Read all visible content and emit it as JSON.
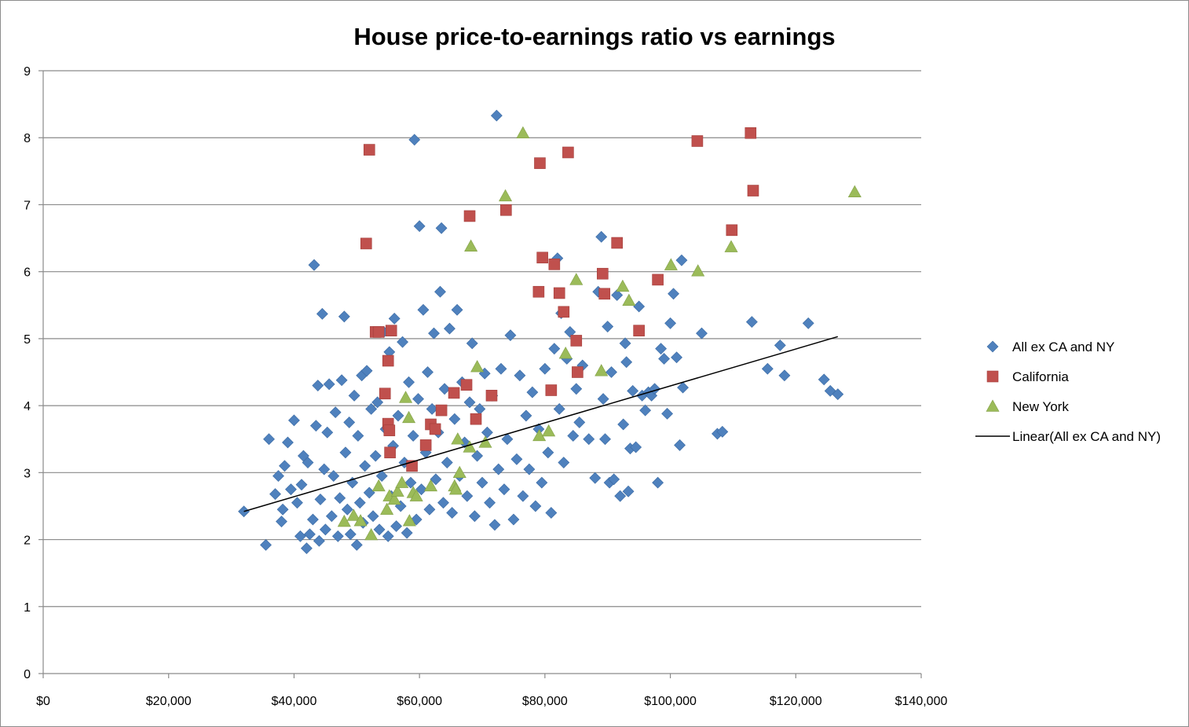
{
  "chart_data": {
    "type": "scatter",
    "title": "House price-to-earnings ratio vs earnings",
    "xlabel": "",
    "ylabel": "",
    "xlim": [
      0,
      140000
    ],
    "ylim": [
      0,
      9
    ],
    "x_ticks": [
      0,
      20000,
      40000,
      60000,
      80000,
      100000,
      120000,
      140000
    ],
    "x_tick_labels": [
      "$0",
      "$20,000",
      "$40,000",
      "$60,000",
      "$80,000",
      "$100,000",
      "$120,000",
      "$140,000"
    ],
    "y_ticks": [
      0,
      1,
      2,
      3,
      4,
      5,
      6,
      7,
      8,
      9
    ],
    "y_tick_labels": [
      "0",
      "1",
      "2",
      "3",
      "4",
      "5",
      "6",
      "7",
      "8",
      "9"
    ],
    "grid": "horizontal",
    "legend_position": "right",
    "series": [
      {
        "name": "All ex CA and NY",
        "marker": "diamond",
        "color": "#4f81bd",
        "points": [
          [
            32000,
            2.42
          ],
          [
            35500,
            1.92
          ],
          [
            36000,
            3.5
          ],
          [
            37000,
            2.68
          ],
          [
            37500,
            2.95
          ],
          [
            38000,
            2.27
          ],
          [
            38200,
            2.45
          ],
          [
            38500,
            3.1
          ],
          [
            39000,
            3.45
          ],
          [
            39500,
            2.75
          ],
          [
            40000,
            3.78
          ],
          [
            40500,
            2.55
          ],
          [
            41000,
            2.05
          ],
          [
            41200,
            2.82
          ],
          [
            41500,
            3.25
          ],
          [
            42000,
            1.87
          ],
          [
            42200,
            3.15
          ],
          [
            42500,
            2.08
          ],
          [
            43000,
            2.3
          ],
          [
            43200,
            6.1
          ],
          [
            43500,
            3.7
          ],
          [
            43800,
            4.3
          ],
          [
            44000,
            1.98
          ],
          [
            44200,
            2.6
          ],
          [
            44500,
            5.37
          ],
          [
            44800,
            3.05
          ],
          [
            45000,
            2.15
          ],
          [
            45300,
            3.6
          ],
          [
            45600,
            4.32
          ],
          [
            46000,
            2.35
          ],
          [
            46300,
            2.95
          ],
          [
            46600,
            3.9
          ],
          [
            47000,
            2.05
          ],
          [
            47300,
            2.62
          ],
          [
            47600,
            4.38
          ],
          [
            48000,
            5.33
          ],
          [
            48200,
            3.3
          ],
          [
            48500,
            2.45
          ],
          [
            48800,
            3.75
          ],
          [
            49000,
            2.08
          ],
          [
            49300,
            2.85
          ],
          [
            49600,
            4.15
          ],
          [
            50000,
            1.92
          ],
          [
            50200,
            3.55
          ],
          [
            50500,
            2.55
          ],
          [
            50800,
            4.45
          ],
          [
            51000,
            2.25
          ],
          [
            51300,
            3.1
          ],
          [
            51600,
            4.52
          ],
          [
            52000,
            2.7
          ],
          [
            52300,
            3.95
          ],
          [
            52600,
            2.35
          ],
          [
            53000,
            3.25
          ],
          [
            53300,
            4.05
          ],
          [
            53600,
            2.15
          ],
          [
            54000,
            2.95
          ],
          [
            54300,
            5.1
          ],
          [
            54600,
            3.65
          ],
          [
            55000,
            2.05
          ],
          [
            55200,
            4.8
          ],
          [
            55500,
            2.65
          ],
          [
            55800,
            3.4
          ],
          [
            56000,
            5.3
          ],
          [
            56300,
            2.2
          ],
          [
            56600,
            3.85
          ],
          [
            57000,
            2.5
          ],
          [
            57300,
            4.95
          ],
          [
            57600,
            3.15
          ],
          [
            58000,
            2.1
          ],
          [
            58300,
            4.35
          ],
          [
            58600,
            2.85
          ],
          [
            59000,
            3.55
          ],
          [
            59200,
            7.97
          ],
          [
            59500,
            2.3
          ],
          [
            59800,
            4.1
          ],
          [
            60000,
            6.68
          ],
          [
            60300,
            2.75
          ],
          [
            60600,
            5.43
          ],
          [
            61000,
            3.3
          ],
          [
            61300,
            4.5
          ],
          [
            61600,
            2.45
          ],
          [
            62000,
            3.95
          ],
          [
            62300,
            5.08
          ],
          [
            62600,
            2.9
          ],
          [
            63000,
            3.6
          ],
          [
            63300,
            5.7
          ],
          [
            63500,
            6.65
          ],
          [
            63800,
            2.55
          ],
          [
            64000,
            4.25
          ],
          [
            64400,
            3.15
          ],
          [
            64800,
            5.15
          ],
          [
            65200,
            2.4
          ],
          [
            65600,
            3.8
          ],
          [
            66000,
            5.43
          ],
          [
            66400,
            2.95
          ],
          [
            66800,
            4.35
          ],
          [
            67200,
            3.45
          ],
          [
            67600,
            2.65
          ],
          [
            68000,
            4.05
          ],
          [
            68400,
            4.93
          ],
          [
            68800,
            2.35
          ],
          [
            69200,
            3.25
          ],
          [
            69600,
            3.95
          ],
          [
            70000,
            2.85
          ],
          [
            70400,
            4.48
          ],
          [
            70800,
            3.6
          ],
          [
            71200,
            2.55
          ],
          [
            71600,
            4.15
          ],
          [
            72000,
            2.22
          ],
          [
            72300,
            8.33
          ],
          [
            72600,
            3.05
          ],
          [
            73000,
            4.55
          ],
          [
            73500,
            2.75
          ],
          [
            74000,
            3.5
          ],
          [
            74500,
            5.05
          ],
          [
            75000,
            2.3
          ],
          [
            75500,
            3.2
          ],
          [
            76000,
            4.45
          ],
          [
            76500,
            2.65
          ],
          [
            77000,
            3.85
          ],
          [
            77500,
            3.05
          ],
          [
            78000,
            4.2
          ],
          [
            78500,
            2.5
          ],
          [
            79000,
            3.65
          ],
          [
            79500,
            2.85
          ],
          [
            80000,
            4.55
          ],
          [
            80500,
            3.3
          ],
          [
            81000,
            2.4
          ],
          [
            81500,
            4.85
          ],
          [
            82000,
            6.2
          ],
          [
            82300,
            3.95
          ],
          [
            82600,
            5.38
          ],
          [
            83000,
            3.15
          ],
          [
            83500,
            4.7
          ],
          [
            84000,
            5.1
          ],
          [
            84500,
            3.55
          ],
          [
            85000,
            4.25
          ],
          [
            85500,
            3.75
          ],
          [
            86000,
            4.6
          ],
          [
            87000,
            3.5
          ],
          [
            88000,
            2.92
          ],
          [
            88500,
            5.7
          ],
          [
            89000,
            6.52
          ],
          [
            89300,
            4.1
          ],
          [
            89600,
            3.5
          ],
          [
            90000,
            5.18
          ],
          [
            90300,
            2.85
          ],
          [
            90600,
            4.5
          ],
          [
            91000,
            2.9
          ],
          [
            91500,
            5.65
          ],
          [
            92000,
            2.65
          ],
          [
            92500,
            3.72
          ],
          [
            92800,
            4.93
          ],
          [
            93000,
            4.65
          ],
          [
            93300,
            2.72
          ],
          [
            93600,
            3.36
          ],
          [
            94000,
            4.22
          ],
          [
            94500,
            3.38
          ],
          [
            95000,
            5.48
          ],
          [
            95500,
            4.15
          ],
          [
            96000,
            3.93
          ],
          [
            96500,
            4.2
          ],
          [
            97000,
            4.15
          ],
          [
            97500,
            4.25
          ],
          [
            98000,
            2.85
          ],
          [
            98500,
            4.85
          ],
          [
            99000,
            4.7
          ],
          [
            99500,
            3.88
          ],
          [
            100000,
            5.23
          ],
          [
            100500,
            5.67
          ],
          [
            101000,
            4.72
          ],
          [
            101500,
            3.41
          ],
          [
            101800,
            6.17
          ],
          [
            102000,
            4.27
          ],
          [
            105000,
            5.08
          ],
          [
            107500,
            3.58
          ],
          [
            108300,
            3.61
          ],
          [
            113000,
            5.25
          ],
          [
            115500,
            4.55
          ],
          [
            117500,
            4.9
          ],
          [
            118200,
            4.45
          ],
          [
            122000,
            5.23
          ],
          [
            124500,
            4.39
          ],
          [
            125500,
            4.22
          ],
          [
            126700,
            4.17
          ]
        ]
      },
      {
        "name": "California",
        "marker": "square",
        "color": "#c0504d",
        "points": [
          [
            51500,
            6.42
          ],
          [
            52000,
            7.82
          ],
          [
            53000,
            5.1
          ],
          [
            53500,
            5.1
          ],
          [
            54500,
            4.18
          ],
          [
            55000,
            4.67
          ],
          [
            55000,
            3.73
          ],
          [
            55200,
            3.63
          ],
          [
            55500,
            5.12
          ],
          [
            55300,
            3.3
          ],
          [
            58800,
            3.1
          ],
          [
            61000,
            3.41
          ],
          [
            61800,
            3.72
          ],
          [
            62500,
            3.65
          ],
          [
            63500,
            3.93
          ],
          [
            65500,
            4.19
          ],
          [
            67500,
            4.31
          ],
          [
            68000,
            6.83
          ],
          [
            69000,
            3.8
          ],
          [
            71500,
            4.15
          ],
          [
            73800,
            6.92
          ],
          [
            79000,
            5.7
          ],
          [
            79200,
            7.62
          ],
          [
            79600,
            6.21
          ],
          [
            81000,
            4.23
          ],
          [
            81500,
            6.11
          ],
          [
            82300,
            5.68
          ],
          [
            83000,
            5.4
          ],
          [
            83700,
            7.78
          ],
          [
            85000,
            4.97
          ],
          [
            85200,
            4.5
          ],
          [
            89200,
            5.97
          ],
          [
            89500,
            5.67
          ],
          [
            91500,
            6.43
          ],
          [
            95000,
            5.12
          ],
          [
            98000,
            5.88
          ],
          [
            104300,
            7.95
          ],
          [
            109800,
            6.62
          ],
          [
            112800,
            8.07
          ],
          [
            113200,
            7.21
          ]
        ]
      },
      {
        "name": "New York",
        "marker": "triangle",
        "color": "#9bbb59",
        "points": [
          [
            48000,
            2.27
          ],
          [
            49500,
            2.36
          ],
          [
            50600,
            2.28
          ],
          [
            52300,
            2.07
          ],
          [
            53500,
            2.8
          ],
          [
            54800,
            2.45
          ],
          [
            55200,
            2.65
          ],
          [
            56000,
            2.6
          ],
          [
            56500,
            2.72
          ],
          [
            57200,
            2.85
          ],
          [
            57800,
            4.12
          ],
          [
            58300,
            3.82
          ],
          [
            58400,
            2.28
          ],
          [
            59000,
            2.7
          ],
          [
            59500,
            2.65
          ],
          [
            61800,
            2.8
          ],
          [
            65600,
            2.8
          ],
          [
            65800,
            2.75
          ],
          [
            66100,
            3.5
          ],
          [
            66400,
            3.0
          ],
          [
            68000,
            3.38
          ],
          [
            68200,
            6.38
          ],
          [
            69200,
            4.58
          ],
          [
            70500,
            3.45
          ],
          [
            73700,
            7.13
          ],
          [
            76500,
            8.07
          ],
          [
            79100,
            3.55
          ],
          [
            80600,
            3.62
          ],
          [
            83300,
            4.78
          ],
          [
            85000,
            5.88
          ],
          [
            89000,
            4.52
          ],
          [
            92400,
            5.78
          ],
          [
            93400,
            5.57
          ],
          [
            100100,
            6.1
          ],
          [
            104400,
            6.01
          ],
          [
            109700,
            6.37
          ],
          [
            129400,
            7.19
          ]
        ]
      },
      {
        "name": "Linear(All ex CA and NY)",
        "type": "trendline",
        "color": "#000000",
        "x": [
          32000,
          126700
        ],
        "y": [
          2.42,
          5.03
        ]
      }
    ]
  }
}
